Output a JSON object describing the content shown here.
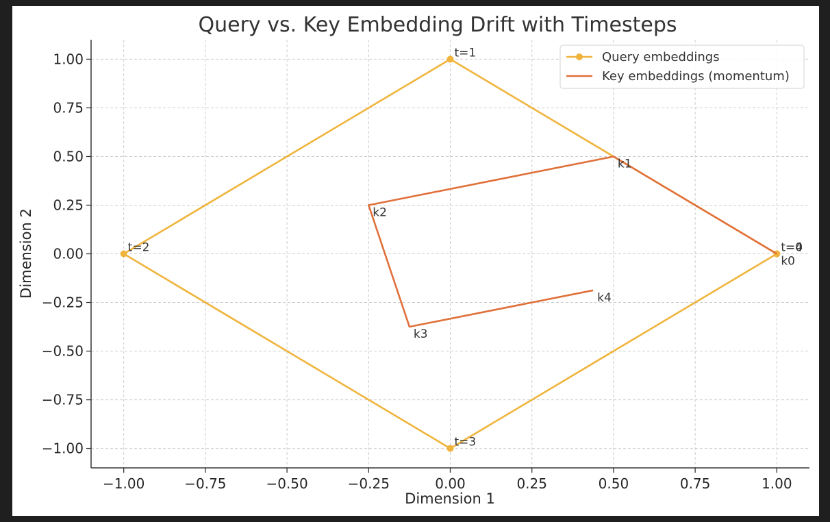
{
  "chart_data": {
    "type": "line",
    "title": "Query vs. Key Embedding Drift with Timesteps",
    "xlabel": "Dimension 1",
    "ylabel": "Dimension 2",
    "xlim": [
      -1.1,
      1.1
    ],
    "ylim": [
      -1.1,
      1.1
    ],
    "xticks": [
      -1.0,
      -0.75,
      -0.5,
      -0.25,
      0.0,
      0.25,
      0.5,
      0.75,
      1.0
    ],
    "xtick_labels": [
      "−1.00",
      "−0.75",
      "−0.50",
      "−0.25",
      "0.00",
      "0.25",
      "0.50",
      "0.75",
      "1.00"
    ],
    "yticks": [
      -1.0,
      -0.75,
      -0.5,
      -0.25,
      0.0,
      0.25,
      0.5,
      0.75,
      1.0
    ],
    "ytick_labels": [
      "−1.00",
      "−0.75",
      "−0.50",
      "−0.25",
      "0.00",
      "0.25",
      "0.50",
      "0.75",
      "1.00"
    ],
    "grid": true,
    "legend_position": "top-right",
    "series": [
      {
        "name": "Query embeddings",
        "color": "#f0b43c",
        "marker": "circle",
        "x": [
          1.0,
          0.0,
          -1.0,
          0.0,
          1.0
        ],
        "y": [
          0.0,
          1.0,
          0.0,
          -1.0,
          0.0
        ],
        "point_labels": [
          "t=0",
          "t=1",
          "t=2",
          "t=3",
          "t=4"
        ]
      },
      {
        "name": "Key embeddings (momentum)",
        "color": "#e0703a",
        "marker": "none",
        "x": [
          1.0,
          0.5,
          -0.25,
          -0.125,
          0.4375
        ],
        "y": [
          0.0,
          0.5,
          0.25,
          -0.375,
          -0.1875
        ],
        "point_labels": [
          "k0",
          "k1",
          "k2",
          "k3",
          "k4"
        ]
      }
    ]
  }
}
